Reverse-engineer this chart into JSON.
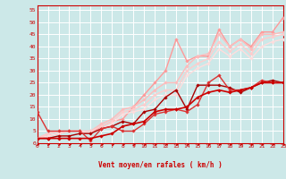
{
  "bg_color": "#cce8e8",
  "grid_color": "#ffffff",
  "xlabel": "Vent moyen/en rafales ( km/h )",
  "xlabel_color": "#cc0000",
  "tick_color": "#cc0000",
  "x_ticks": [
    0,
    1,
    2,
    3,
    4,
    5,
    6,
    7,
    8,
    9,
    10,
    11,
    12,
    13,
    14,
    15,
    16,
    17,
    18,
    19,
    20,
    21,
    22,
    23
  ],
  "y_ticks": [
    0,
    5,
    10,
    15,
    20,
    25,
    30,
    35,
    40,
    45,
    50,
    55
  ],
  "xlim": [
    0,
    23
  ],
  "ylim": [
    0,
    57
  ],
  "lines": [
    {
      "x": [
        0,
        1,
        2,
        3,
        4,
        5,
        6,
        7,
        8,
        9,
        10,
        11,
        12,
        13,
        14,
        15,
        16,
        17,
        18,
        19,
        20,
        21,
        22,
        23
      ],
      "y": [
        2,
        2,
        2,
        2,
        2,
        2,
        3,
        4,
        7,
        8,
        9,
        13,
        14,
        14,
        15,
        19,
        21,
        22,
        21,
        22,
        23,
        25,
        25,
        25
      ],
      "color": "#cc0000",
      "lw": 1.2,
      "marker": "D",
      "ms": 1.8,
      "zorder": 5
    },
    {
      "x": [
        0,
        1,
        2,
        3,
        4,
        5,
        6,
        7,
        8,
        9,
        10,
        11,
        12,
        13,
        14,
        15,
        16,
        17,
        18,
        19,
        20,
        21,
        22,
        23
      ],
      "y": [
        2,
        2,
        3,
        3,
        4,
        4,
        6,
        7,
        9,
        8,
        13,
        14,
        19,
        22,
        14,
        24,
        24,
        24,
        23,
        21,
        23,
        25,
        26,
        25
      ],
      "color": "#aa0000",
      "lw": 1.0,
      "marker": "s",
      "ms": 1.8,
      "zorder": 4
    },
    {
      "x": [
        0,
        1,
        2,
        3,
        4,
        5,
        6,
        7,
        8,
        9,
        10,
        11,
        12,
        13,
        14,
        15,
        16,
        17,
        18,
        19,
        20,
        21,
        22,
        23
      ],
      "y": [
        13,
        5,
        5,
        5,
        5,
        1,
        6,
        7,
        5,
        5,
        8,
        12,
        13,
        14,
        13,
        16,
        25,
        28,
        22,
        22,
        23,
        26,
        25,
        25
      ],
      "color": "#dd3333",
      "lw": 1.0,
      "marker": "^",
      "ms": 1.8,
      "zorder": 4
    },
    {
      "x": [
        0,
        1,
        2,
        3,
        4,
        5,
        6,
        7,
        8,
        9,
        10,
        11,
        12,
        13,
        14,
        15,
        16,
        17,
        18,
        19,
        20,
        21,
        22,
        23
      ],
      "y": [
        2,
        3,
        4,
        5,
        5,
        4,
        7,
        9,
        10,
        15,
        20,
        25,
        30,
        43,
        34,
        36,
        36,
        47,
        40,
        43,
        40,
        46,
        46,
        52
      ],
      "color": "#ff9999",
      "lw": 1.0,
      "marker": "D",
      "ms": 1.8,
      "zorder": 3
    },
    {
      "x": [
        0,
        1,
        2,
        3,
        4,
        5,
        6,
        7,
        8,
        9,
        10,
        11,
        12,
        13,
        14,
        15,
        16,
        17,
        18,
        19,
        20,
        21,
        22,
        23
      ],
      "y": [
        2,
        4,
        5,
        5,
        5,
        5,
        8,
        10,
        14,
        15,
        18,
        22,
        25,
        25,
        32,
        36,
        37,
        45,
        40,
        43,
        39,
        45,
        45,
        46
      ],
      "color": "#ffbbbb",
      "lw": 1.0,
      "marker": "D",
      "ms": 1.8,
      "zorder": 3
    },
    {
      "x": [
        0,
        1,
        2,
        3,
        4,
        5,
        6,
        7,
        8,
        9,
        10,
        11,
        12,
        13,
        14,
        15,
        16,
        17,
        18,
        19,
        20,
        21,
        22,
        23
      ],
      "y": [
        2,
        4,
        5,
        5,
        5,
        5,
        7,
        9,
        13,
        14,
        16,
        20,
        22,
        22,
        30,
        33,
        35,
        42,
        38,
        41,
        37,
        43,
        44,
        45
      ],
      "color": "#ffcccc",
      "lw": 1.0,
      "marker": "D",
      "ms": 1.8,
      "zorder": 3
    },
    {
      "x": [
        0,
        1,
        2,
        3,
        4,
        5,
        6,
        7,
        8,
        9,
        10,
        11,
        12,
        13,
        14,
        15,
        16,
        17,
        18,
        19,
        20,
        21,
        22,
        23
      ],
      "y": [
        2,
        3,
        4,
        5,
        5,
        4,
        6,
        8,
        12,
        13,
        14,
        18,
        20,
        20,
        28,
        31,
        33,
        39,
        36,
        39,
        35,
        40,
        42,
        43
      ],
      "color": "#ffdddd",
      "lw": 1.0,
      "marker": "D",
      "ms": 1.8,
      "zorder": 3
    }
  ],
  "arrow_color": "#cc0000",
  "spine_color": "#cc0000"
}
